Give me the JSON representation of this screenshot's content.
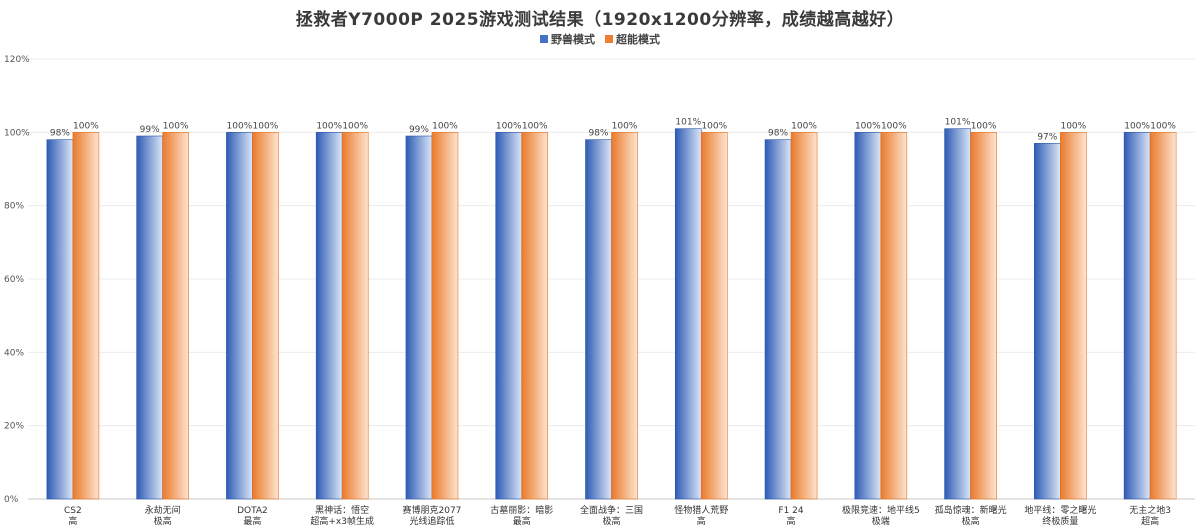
{
  "chart_data": {
    "type": "bar",
    "title": "拯救者Y7000P 2025游戏测试结果（1920x1200分辨率，成绩越高越好）",
    "ylim": [
      0,
      120
    ],
    "yticks": [
      "0%",
      "20%",
      "40%",
      "60%",
      "80%",
      "100%",
      "120%"
    ],
    "ytick_values": [
      0,
      20,
      40,
      60,
      80,
      100,
      120
    ],
    "grid": true,
    "legend_position": "top-center",
    "categories": [
      [
        "CS2",
        "高"
      ],
      [
        "永劫无间",
        "极高"
      ],
      [
        "DOTA2",
        "最高"
      ],
      [
        "黑神话：悟空",
        "超高+x3帧生成"
      ],
      [
        "赛博朋克2077",
        "光线追踪低"
      ],
      [
        "古墓丽影：暗影",
        "最高"
      ],
      [
        "全面战争：三国",
        "极高"
      ],
      [
        "怪物猎人荒野",
        "高"
      ],
      [
        "F1 24",
        "高"
      ],
      [
        "极限竞速：地平线5",
        "极端"
      ],
      [
        "孤岛惊魂：新曙光",
        "极高"
      ],
      [
        "地平线：零之曙光",
        "终极质量"
      ],
      [
        "无主之地3",
        "超高"
      ]
    ],
    "series": [
      {
        "name": "野兽模式",
        "color": "#4472C4",
        "values": [
          98,
          99,
          100,
          100,
          99,
          100,
          98,
          101,
          98,
          100,
          101,
          97,
          100
        ],
        "labels": [
          "98%",
          "99%",
          "100%",
          "100%",
          "99%",
          "100%",
          "98%",
          "101%",
          "98%",
          "100%",
          "101%",
          "97%",
          "100%"
        ]
      },
      {
        "name": "超能模式",
        "color": "#ED7D31",
        "values": [
          100,
          100,
          100,
          100,
          100,
          100,
          100,
          100,
          100,
          100,
          100,
          100,
          100
        ],
        "labels": [
          "100%",
          "100%",
          "100%",
          "100%",
          "100%",
          "100%",
          "100%",
          "100%",
          "100%",
          "100%",
          "100%",
          "100%",
          "100%"
        ]
      }
    ]
  }
}
